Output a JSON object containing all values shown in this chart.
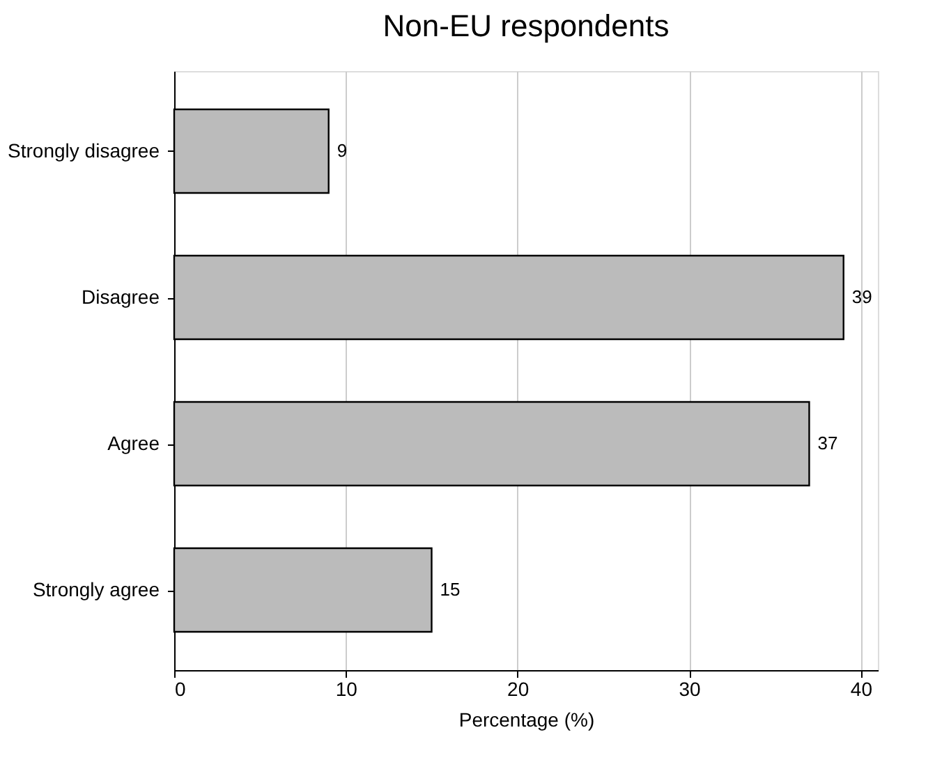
{
  "chart_data": {
    "type": "bar",
    "orientation": "horizontal",
    "title": "Non-EU respondents",
    "xlabel": "Percentage (%)",
    "categories": [
      "Strongly disagree",
      "Disagree",
      "Agree",
      "Strongly agree"
    ],
    "values": [
      9,
      39,
      37,
      15
    ],
    "color": "#bbbbbb",
    "xlim": [
      0,
      41
    ],
    "xticks": [
      0,
      10,
      20,
      30,
      40
    ],
    "grid": "x",
    "data_labels": true
  }
}
